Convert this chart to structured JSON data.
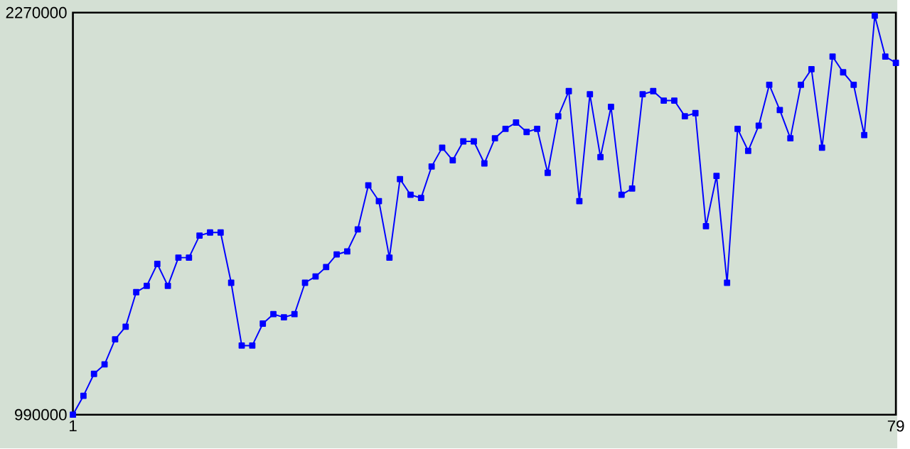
{
  "chart_data": {
    "type": "line",
    "x": [
      1,
      2,
      3,
      4,
      5,
      6,
      7,
      8,
      9,
      10,
      11,
      12,
      13,
      14,
      15,
      16,
      17,
      18,
      19,
      20,
      21,
      22,
      23,
      24,
      25,
      26,
      27,
      28,
      29,
      30,
      31,
      32,
      33,
      34,
      35,
      36,
      37,
      38,
      39,
      40,
      41,
      42,
      43,
      44,
      45,
      46,
      47,
      48,
      49,
      50,
      51,
      52,
      53,
      54,
      55,
      56,
      57,
      58,
      59,
      60,
      61,
      62,
      63,
      64,
      65,
      66,
      67,
      68,
      69,
      70,
      71,
      72,
      73,
      74,
      75,
      76,
      77,
      78,
      79
    ],
    "series": [
      {
        "color": "#0000ff",
        "values": [
          990000,
          1050000,
          1120000,
          1150000,
          1230000,
          1270000,
          1380000,
          1400000,
          1470000,
          1400000,
          1490000,
          1490000,
          1560000,
          1570000,
          1570000,
          1410000,
          1210000,
          1210000,
          1280000,
          1310000,
          1300000,
          1310000,
          1410000,
          1430000,
          1460000,
          1500000,
          1510000,
          1580000,
          1720000,
          1670000,
          1490000,
          1740000,
          1690000,
          1680000,
          1780000,
          1840000,
          1800000,
          1860000,
          1860000,
          1790000,
          1870000,
          1900000,
          1920000,
          1890000,
          1900000,
          1760000,
          1940000,
          2020000,
          1670000,
          2010000,
          1810000,
          1970000,
          1690000,
          1710000,
          2010000,
          2020000,
          1990000,
          1990000,
          1940000,
          1950000,
          1590000,
          1750000,
          1410000,
          1900000,
          1830000,
          1910000,
          2040000,
          1960000,
          1870000,
          2040000,
          2090000,
          1840000,
          2130000,
          2080000,
          2040000,
          1880000,
          2260000,
          2130000,
          2110000
        ]
      }
    ],
    "xlim": [
      1,
      79
    ],
    "ylim": [
      990000,
      2270000
    ],
    "xticks": [
      1,
      79
    ],
    "yticks": [
      990000,
      2270000
    ],
    "marker": "square",
    "line_style": "solid"
  }
}
